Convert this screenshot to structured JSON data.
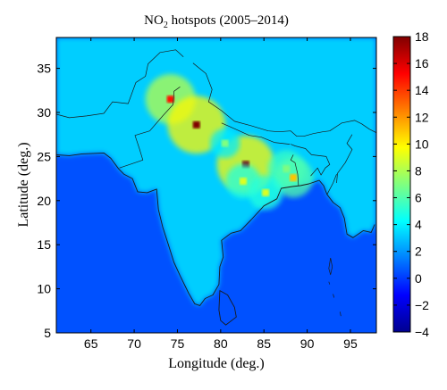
{
  "chart_data": {
    "type": "heatmap",
    "title": "NO",
    "title_subscript": "2",
    "title_suffix": " hotspots (2005–2014)",
    "xlabel": "Longitude (deg.)",
    "ylabel": "Latitude (deg.)",
    "xlim": [
      61,
      98
    ],
    "ylim": [
      5,
      38.5
    ],
    "xticks": [
      "65",
      "70",
      "75",
      "80",
      "85",
      "90",
      "95"
    ],
    "yticks": [
      "5",
      "10",
      "15",
      "20",
      "25",
      "30",
      "35"
    ],
    "colorbar": {
      "min": -4,
      "max": 18,
      "ticks": [
        "18",
        "16",
        "14",
        "12",
        "10",
        "8",
        "6",
        "4",
        "2",
        "0",
        "−2",
        "−4"
      ],
      "colormap": "jet"
    },
    "background_value": 0.5,
    "land_value": 3.2,
    "hotspots": [
      {
        "lon": 74.2,
        "lat": 31.5,
        "value": 15
      },
      {
        "lon": 77.2,
        "lat": 28.6,
        "value": 18
      },
      {
        "lon": 82.9,
        "lat": 24.1,
        "value": 18
      },
      {
        "lon": 82.6,
        "lat": 22.2,
        "value": 9
      },
      {
        "lon": 87.6,
        "lat": 23.6,
        "value": 10
      },
      {
        "lon": 88.4,
        "lat": 22.6,
        "value": 11
      },
      {
        "lon": 85.2,
        "lat": 20.9,
        "value": 9
      },
      {
        "lon": 80.5,
        "lat": 26.5,
        "value": 7
      }
    ]
  }
}
